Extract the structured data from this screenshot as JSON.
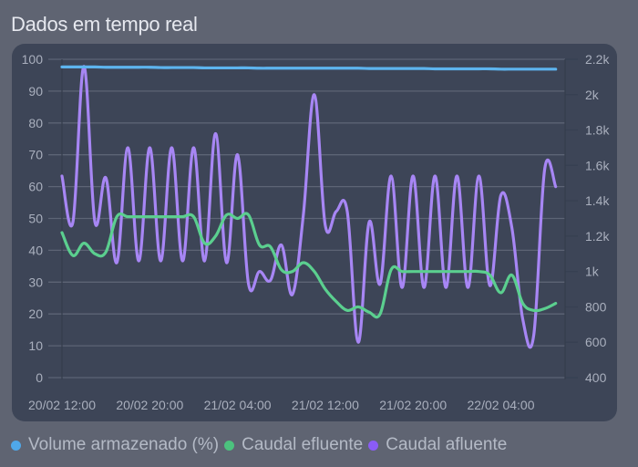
{
  "header": {
    "title": "Dados em tempo real"
  },
  "colors": {
    "volume": "#5db4ee",
    "efluente": "#5bcf8f",
    "afluente": "#a786f4",
    "grid": "#5d6475",
    "axis_text": "#a9afbd",
    "panel": "#3d4557",
    "background": "#5f6472"
  },
  "legend": [
    {
      "label": "Volume armazenado (%)",
      "color": "#4fa8ea"
    },
    {
      "label": "Caudal efluente",
      "color": "#4cc27e"
    },
    {
      "label": "Caudal afluente",
      "color": "#8a5cf5"
    }
  ],
  "chart_data": {
    "type": "line",
    "title": "Dados em tempo real",
    "xlabel": "",
    "ylabel_left": "Volume armazenado (%)",
    "ylabel_right": "Caudal",
    "x_ticks": [
      "20/02 12:00",
      "20/02 20:00",
      "21/02 04:00",
      "21/02 12:00",
      "21/02 20:00",
      "22/02 04:00"
    ],
    "y_left_ticks": [
      0,
      10,
      20,
      30,
      40,
      50,
      60,
      70,
      80,
      90,
      100
    ],
    "y_right_ticks": [
      "400",
      "600",
      "800",
      "1k",
      "1.2k",
      "1.4k",
      "1.6k",
      "1.8k",
      "2k",
      "2.2k"
    ],
    "ylim_left": [
      0,
      100
    ],
    "ylim_right": [
      400,
      2200
    ],
    "grid": true,
    "legend_position": "bottom",
    "x_hours": [
      0,
      1,
      2,
      3,
      4,
      5,
      6,
      7,
      8,
      9,
      10,
      11,
      12,
      13,
      14,
      15,
      16,
      17,
      18,
      19,
      20,
      21,
      22,
      23,
      24,
      25,
      26,
      27,
      28,
      29,
      30,
      31,
      32,
      33,
      34,
      35,
      36,
      37,
      38,
      39,
      40,
      41,
      42,
      43,
      44,
      45
    ],
    "series": [
      {
        "name": "Volume armazenado (%)",
        "axis": "left",
        "values": [
          97.6,
          97.6,
          97.6,
          97.6,
          97.5,
          97.5,
          97.5,
          97.5,
          97.5,
          97.4,
          97.4,
          97.4,
          97.4,
          97.3,
          97.3,
          97.3,
          97.3,
          97.3,
          97.2,
          97.2,
          97.2,
          97.2,
          97.2,
          97.2,
          97.2,
          97.2,
          97.2,
          97.2,
          97.1,
          97.1,
          97.1,
          97.1,
          97.1,
          97.1,
          97.0,
          97.0,
          97.0,
          97.0,
          97.0,
          97.0,
          96.9,
          96.9,
          96.9,
          96.9,
          96.9,
          96.9
        ]
      },
      {
        "name": "Caudal efluente",
        "axis": "right",
        "values": [
          1220,
          1090,
          1160,
          1100,
          1110,
          1310,
          1310,
          1310,
          1310,
          1310,
          1310,
          1310,
          1310,
          1160,
          1200,
          1320,
          1300,
          1320,
          1150,
          1140,
          1010,
          1000,
          1050,
          1000,
          900,
          830,
          780,
          800,
          770,
          760,
          1010,
          1000,
          1000,
          1000,
          1000,
          1000,
          1000,
          1000,
          1000,
          980,
          880,
          980,
          820,
          780,
          790,
          820
        ]
      },
      {
        "name": "Caudal afluente",
        "axis": "right",
        "values": [
          1540,
          1280,
          2160,
          1280,
          1530,
          1050,
          1700,
          1060,
          1700,
          1060,
          1700,
          1060,
          1700,
          1060,
          1780,
          1050,
          1660,
          930,
          1000,
          950,
          1150,
          870,
          1320,
          2000,
          1260,
          1340,
          1340,
          600,
          1280,
          930,
          1540,
          910,
          1540,
          910,
          1540,
          910,
          1540,
          910,
          1540,
          920,
          1430,
          1250,
          730,
          640,
          1580,
          1480
        ]
      }
    ]
  }
}
